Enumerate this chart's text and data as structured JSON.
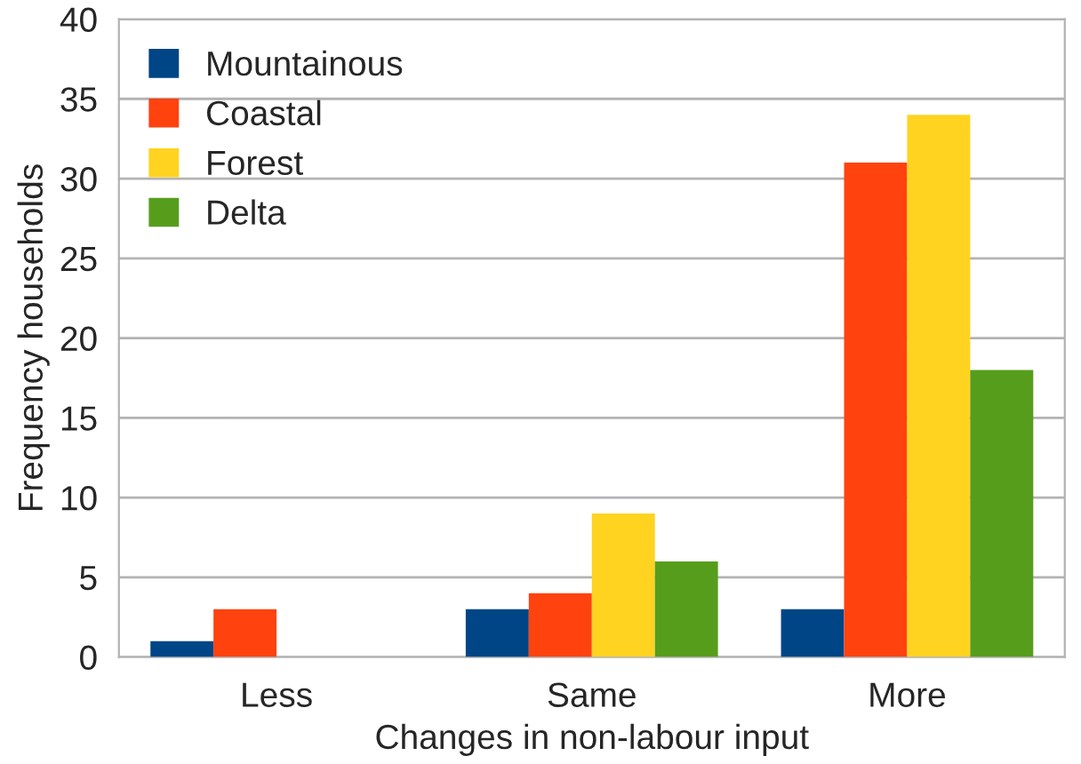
{
  "chart_data": {
    "type": "bar",
    "xlabel": "Changes in non-labour input",
    "ylabel": "Frequency households",
    "categories": [
      "Less",
      "Same",
      "More"
    ],
    "series": [
      {
        "name": "Mountainous",
        "color": "#004586",
        "values": [
          1,
          3,
          3
        ]
      },
      {
        "name": "Coastal",
        "color": "#ff420e",
        "values": [
          3,
          4,
          31
        ]
      },
      {
        "name": "Forest",
        "color": "#ffd320",
        "values": [
          0,
          9,
          34
        ]
      },
      {
        "name": "Delta",
        "color": "#579d1c",
        "values": [
          0,
          6,
          18
        ]
      }
    ],
    "ylim": [
      0,
      40
    ],
    "yticks": [
      0,
      5,
      10,
      15,
      20,
      25,
      30,
      35,
      40
    ],
    "grid": "y",
    "legend": "top left"
  }
}
